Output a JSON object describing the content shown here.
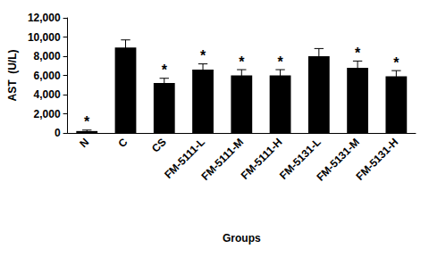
{
  "chart_data": {
    "type": "bar",
    "categories": [
      "N",
      "C",
      "CS",
      "FM-5111-L",
      "FM-5111-M",
      "FM-5111-H",
      "FM-5131-L",
      "FM-5131-M",
      "FM-5131-H"
    ],
    "values": [
      200,
      8900,
      5200,
      6600,
      6000,
      6000,
      8000,
      6800,
      5900
    ],
    "errors": [
      100,
      800,
      500,
      600,
      600,
      600,
      800,
      700,
      600
    ],
    "annotations": [
      "*",
      null,
      "*",
      "*",
      "*",
      "*",
      null,
      "*",
      "*"
    ],
    "color": "#000000",
    "x_label": "Groups",
    "y_label": "AST  (U/L)",
    "ylim": [
      0,
      12000
    ],
    "yticks": [
      0,
      2000,
      4000,
      6000,
      8000,
      10000,
      12000
    ],
    "grid": false
  }
}
